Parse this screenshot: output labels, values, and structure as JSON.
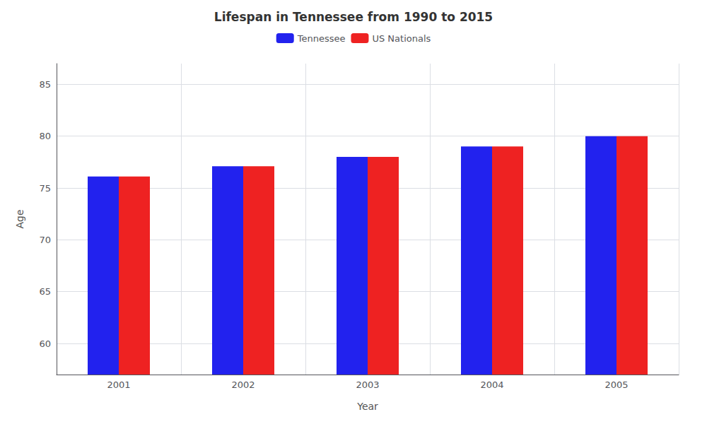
{
  "chart_data": {
    "type": "bar",
    "title": "Lifespan in Tennessee from 1990 to 2015",
    "x_label": "Year",
    "y_label": "Age",
    "categories": [
      "2001",
      "2002",
      "2003",
      "2004",
      "2005"
    ],
    "series": [
      {
        "name": "Tennessee",
        "color": "#2222ee",
        "values": [
          76.1,
          77.1,
          78.0,
          79.0,
          80.0
        ]
      },
      {
        "name": "US Nationals",
        "color": "#ee2222",
        "values": [
          76.1,
          77.1,
          78.0,
          79.0,
          80.0
        ]
      }
    ],
    "ylim": [
      57,
      87
    ],
    "yticks": [
      60,
      65,
      70,
      75,
      80,
      85
    ],
    "grid": true,
    "legend": "top"
  }
}
